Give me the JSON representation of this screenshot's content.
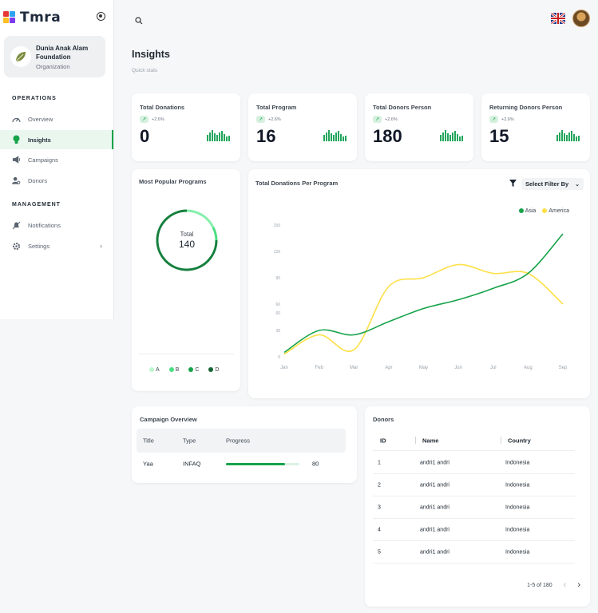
{
  "brand": {
    "name": "Tmra",
    "colors": {
      "accent": "#16a34a",
      "sky": "#2ea3f2",
      "red": "#e53935",
      "yellow": "#fbbf24",
      "purple": "#7c3aed"
    }
  },
  "org": {
    "name": "Dunia Anak Alam Foundation",
    "type": "Organization"
  },
  "sidebar": {
    "operations_title": "OPERATIONS",
    "operations": [
      {
        "label": "Overview",
        "icon": "gauge-icon"
      },
      {
        "label": "Insights",
        "icon": "bulb-icon",
        "active": true
      },
      {
        "label": "Campaigns",
        "icon": "megaphone-icon"
      },
      {
        "label": "Donors",
        "icon": "user-search-icon"
      }
    ],
    "management_title": "MANAGEMENT",
    "management": [
      {
        "label": "Notifications",
        "icon": "bell-off-icon"
      },
      {
        "label": "Settings",
        "icon": "gear-icon"
      }
    ]
  },
  "page": {
    "title": "Insights",
    "subtitle": "Quick stats"
  },
  "stats": [
    {
      "title": "Total Donations",
      "change": "+2.6%",
      "value": "0"
    },
    {
      "title": "Total Program",
      "change": "+2.6%",
      "value": "16"
    },
    {
      "title": "Total Donors Person",
      "change": "+2.6%",
      "value": "180"
    },
    {
      "title": "Returning Donors Person",
      "change": "+2.6%",
      "value": "15"
    }
  ],
  "popular": {
    "title": "Most Popular Programs",
    "total_label": "Total",
    "total_value": "140",
    "legend": [
      {
        "label": "A",
        "color": "#bbf7d0"
      },
      {
        "label": "B",
        "color": "#4ade80"
      },
      {
        "label": "C",
        "color": "#16a34a"
      },
      {
        "label": "D",
        "color": "#166534"
      }
    ]
  },
  "donations_chart": {
    "title": "Total Donations Per Program",
    "filter_placeholder": "Select Filter By"
  },
  "chart_data": {
    "type": "line",
    "categories": [
      "Jan",
      "Feb",
      "Mar",
      "Apr",
      "May",
      "Jun",
      "Jul",
      "Aug",
      "Sep"
    ],
    "y_ticks": [
      "0",
      "30",
      "60",
      "60",
      "90",
      "120",
      "150"
    ],
    "series": [
      {
        "name": "Asia",
        "color": "#16a34a",
        "values": [
          5,
          30,
          25,
          40,
          55,
          65,
          78,
          95,
          140
        ]
      },
      {
        "name": "America",
        "color": "#fde047",
        "values": [
          3,
          25,
          8,
          80,
          90,
          105,
          95,
          95,
          60
        ]
      }
    ],
    "legend_position": "top-right",
    "grid": false
  },
  "campaign": {
    "title": "Campaign Overview",
    "headers": [
      "Title",
      "Type",
      "Progress"
    ],
    "rows": [
      {
        "title": "Yaa",
        "type": "INFAQ",
        "progress": 0.8,
        "progress_label": "80"
      }
    ]
  },
  "donors": {
    "title": "Donors",
    "headers": [
      "ID",
      "Name",
      "Country"
    ],
    "rows": [
      {
        "id": "1",
        "name": "andri1 andri",
        "country": "Indonesia"
      },
      {
        "id": "2",
        "name": "andri1 andri",
        "country": "Indonesia"
      },
      {
        "id": "3",
        "name": "andri1 andri",
        "country": "Indonesia"
      },
      {
        "id": "4",
        "name": "andri1 andri",
        "country": "Indonesia"
      },
      {
        "id": "5",
        "name": "andri1 andri",
        "country": "Indonesia"
      }
    ],
    "pagination": "1-5 of 180"
  }
}
